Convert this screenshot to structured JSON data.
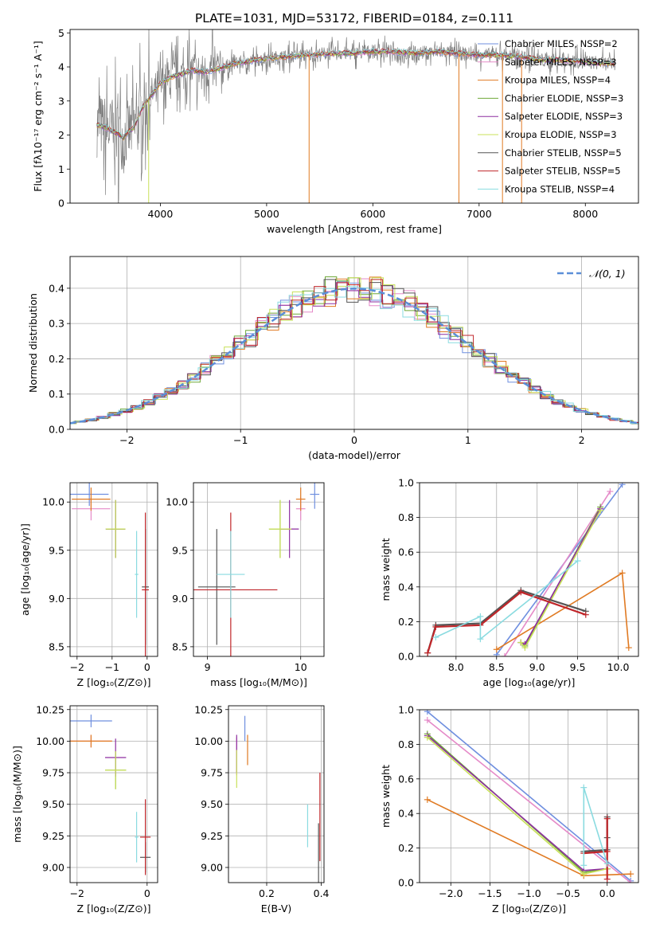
{
  "colors": {
    "chabrier_miles": "#6f8fdf",
    "salpeter_miles": "#e58ac8",
    "kroupa_miles": "#e07a22",
    "chabrier_elodie": "#6fa83a",
    "salpeter_elodie": "#8e2fa0",
    "kroupa_elodie": "#c8e05a",
    "chabrier_stelib": "#555555",
    "salpeter_stelib": "#c0262a",
    "kroupa_stelib": "#8adbe0",
    "normal_curve": "#5b8fd8",
    "observed_spectrum": "#808080"
  },
  "chart_data": [
    {
      "id": "spectrum",
      "type": "line",
      "title": "PLATE=1031, MJD=53172, FIBERID=0184, z=0.111",
      "xlabel": "wavelength [Angstrom, rest frame]",
      "ylabel": "Flux [fλ10⁻¹⁷ erg cm⁻² s⁻¹ A⁻¹]",
      "xlim": [
        3150,
        8500
      ],
      "ylim": [
        0,
        5.1
      ],
      "xticks": [
        4000,
        5000,
        6000,
        7000,
        8000
      ],
      "yticks": [
        0,
        1,
        2,
        3,
        4,
        5
      ],
      "legend_position": "right",
      "legend": [
        "Chabrier MILES, NSSP=2",
        "Salpeter MILES, NSSP=3",
        "Kroupa MILES, NSSP=4",
        "Chabrier ELODIE, NSSP=3",
        "Salpeter ELODIE, NSSP=3",
        "Kroupa ELODIE, NSSP=3",
        "Chabrier STELIB, NSSP=5",
        "Salpeter STELIB, NSSP=5",
        "Kroupa STELIB, NSSP=4"
      ],
      "series": [
        {
          "x": [
            3400,
            3500,
            3550,
            3600,
            3650,
            3700,
            3750,
            3800,
            3850,
            3900,
            3950,
            4000,
            4100,
            4200,
            4300,
            4400,
            4500,
            4600,
            4700,
            4800,
            4900,
            5000,
            5200,
            5400,
            5600,
            5800,
            6000,
            6200,
            6400,
            6600,
            6800,
            7000,
            7200,
            7400,
            7600,
            7800,
            8000,
            8200,
            8280
          ],
          "y": [
            2.3,
            2.2,
            2.1,
            2.05,
            1.9,
            2.1,
            2.2,
            2.6,
            2.9,
            3.1,
            3.3,
            3.5,
            3.7,
            3.8,
            3.9,
            3.85,
            3.9,
            4.0,
            4.1,
            4.15,
            4.2,
            4.25,
            4.3,
            4.35,
            4.4,
            4.4,
            4.45,
            4.45,
            4.4,
            4.45,
            4.4,
            4.35,
            4.35,
            4.3,
            4.2,
            4.2,
            4.15,
            4.1,
            4.1
          ]
        }
      ],
      "extra_line_wavelengths": [
        3890,
        5400,
        6810,
        7220,
        7400
      ]
    },
    {
      "id": "residuals",
      "type": "line",
      "xlabel": "(data-model)/error",
      "ylabel": "Normed distribution",
      "xlim": [
        -2.5,
        2.5
      ],
      "ylim": [
        0,
        0.49
      ],
      "xticks": [
        -2,
        -1,
        0,
        1,
        2
      ],
      "yticks": [
        0.0,
        0.1,
        0.2,
        0.3,
        0.4
      ],
      "legend": [
        "𝒩(0, 1)"
      ],
      "legend_position": "upper right",
      "grid": true,
      "normal": {
        "mean": 0,
        "sigma": 1
      }
    },
    {
      "id": "age_vs_Z",
      "type": "scatter",
      "xlabel": "Z [log₁₀(Z/Z⊙)]",
      "ylabel": "age  [log₁₀(age/yr)]",
      "xlim": [
        -2.2,
        0.3
      ],
      "ylim": [
        8.4,
        10.2
      ],
      "xticks": [
        -2,
        -1,
        0
      ],
      "yticks": [
        8.5,
        9.0,
        9.5,
        10.0
      ],
      "grid": true,
      "points": [
        {
          "x": -1.65,
          "y": 10.08,
          "xerr": 0.55,
          "yerr": 0.12,
          "c": "chabrier_miles"
        },
        {
          "x": -1.6,
          "y": 9.93,
          "xerr": 0.55,
          "yerr": 0.12,
          "c": "salpeter_miles"
        },
        {
          "x": -1.6,
          "y": 10.03,
          "xerr": 0.55,
          "yerr": 0.12,
          "c": "kroupa_miles"
        },
        {
          "x": -0.9,
          "y": 9.72,
          "xerr": 0.28,
          "yerr": 0.3,
          "c": "chabrier_elodie"
        },
        {
          "x": -0.9,
          "y": 9.72,
          "xerr": 0.28,
          "yerr": 0.3,
          "c": "salpeter_elodie"
        },
        {
          "x": -0.9,
          "y": 9.72,
          "xerr": 0.28,
          "yerr": 0.3,
          "c": "kroupa_elodie"
        },
        {
          "x": -0.05,
          "y": 9.12,
          "xerr": 0.1,
          "yerr": 0.6,
          "c": "chabrier_stelib"
        },
        {
          "x": -0.05,
          "y": 9.09,
          "xerr": 0.1,
          "yerr": 0.8,
          "c": "salpeter_stelib"
        },
        {
          "x": -0.3,
          "y": 9.25,
          "xerr": 0.05,
          "yerr": 0.45,
          "c": "kroupa_stelib"
        }
      ]
    },
    {
      "id": "age_vs_mass",
      "type": "scatter",
      "xlabel": "mass [log₁₀(M/M⊙)]",
      "xlim": [
        8.85,
        10.25
      ],
      "ylim": [
        8.4,
        10.2
      ],
      "xticks": [
        9,
        10
      ],
      "yticks": [
        8.5,
        9.0,
        9.5,
        10.0
      ],
      "grid": true,
      "points": [
        {
          "x": 10.15,
          "y": 10.08,
          "xerr": 0.05,
          "yerr": 0.15,
          "c": "chabrier_miles"
        },
        {
          "x": 10.0,
          "y": 9.93,
          "xerr": 0.05,
          "yerr": 0.12,
          "c": "salpeter_miles"
        },
        {
          "x": 10.0,
          "y": 10.03,
          "xerr": 0.05,
          "yerr": 0.12,
          "c": "kroupa_miles"
        },
        {
          "x": 9.78,
          "y": 9.72,
          "xerr": 0.12,
          "yerr": 0.3,
          "c": "chabrier_elodie"
        },
        {
          "x": 9.88,
          "y": 9.72,
          "xerr": 0.1,
          "yerr": 0.3,
          "c": "salpeter_elodie"
        },
        {
          "x": 9.78,
          "y": 9.72,
          "xerr": 0.12,
          "yerr": 0.3,
          "c": "kroupa_elodie"
        },
        {
          "x": 9.1,
          "y": 9.12,
          "xerr": 0.2,
          "yerr": 0.6,
          "c": "chabrier_stelib"
        },
        {
          "x": 9.25,
          "y": 9.09,
          "xerr": 0.5,
          "yerr": 0.8,
          "c": "salpeter_stelib"
        },
        {
          "x": 9.25,
          "y": 9.25,
          "xerr": 0.15,
          "yerr": 0.45,
          "c": "kroupa_stelib"
        }
      ]
    },
    {
      "id": "mass_weight_vs_age",
      "type": "line",
      "xlabel": "age  [log₁₀(age/yr)]",
      "ylabel": "mass weight",
      "xlim": [
        7.55,
        10.25
      ],
      "ylim": [
        0,
        1.0
      ],
      "xticks": [
        8.0,
        8.5,
        9.0,
        9.5,
        10.0
      ],
      "yticks": [
        0.0,
        0.2,
        0.4,
        0.6,
        0.8,
        1.0
      ],
      "grid": true,
      "series": [
        {
          "c": "chabrier_miles",
          "x": [
            8.5,
            10.05
          ],
          "y": [
            0.01,
            0.99
          ]
        },
        {
          "c": "salpeter_miles",
          "x": [
            8.6,
            9.9
          ],
          "y": [
            0.0,
            0.95
          ]
        },
        {
          "c": "kroupa_miles",
          "x": [
            10.13,
            10.05,
            8.5
          ],
          "y": [
            0.05,
            0.48,
            0.04
          ]
        },
        {
          "c": "chabrier_elodie",
          "x": [
            8.8,
            8.85,
            9.78
          ],
          "y": [
            0.08,
            0.06,
            0.86
          ]
        },
        {
          "c": "salpeter_elodie",
          "x": [
            8.8,
            8.85,
            9.78
          ],
          "y": [
            0.08,
            0.07,
            0.85
          ]
        },
        {
          "c": "kroupa_elodie",
          "x": [
            8.8,
            8.85,
            9.78
          ],
          "y": [
            0.08,
            0.05,
            0.84
          ]
        },
        {
          "c": "chabrier_stelib",
          "x": [
            7.65,
            7.75,
            8.3,
            8.8,
            9.6
          ],
          "y": [
            0.02,
            0.18,
            0.19,
            0.38,
            0.26
          ]
        },
        {
          "c": "salpeter_stelib",
          "x": [
            7.65,
            7.75,
            8.3,
            8.8,
            9.6
          ],
          "y": [
            0.02,
            0.17,
            0.18,
            0.37,
            0.24
          ]
        },
        {
          "c": "kroupa_stelib",
          "x": [
            7.75,
            8.3,
            8.3,
            9.5
          ],
          "y": [
            0.11,
            0.23,
            0.1,
            0.55
          ]
        }
      ]
    },
    {
      "id": "mass_vs_Z",
      "type": "scatter",
      "xlabel": "Z [log₁₀(Z/Z⊙)]",
      "ylabel": "mass [log₁₀(M/M⊙)]",
      "xlim": [
        -2.2,
        0.3
      ],
      "ylim": [
        8.88,
        10.28
      ],
      "xticks": [
        -2,
        0
      ],
      "yticks": [
        9.0,
        9.25,
        9.5,
        9.75,
        10.0,
        10.25
      ],
      "grid": true,
      "points": [
        {
          "x": -1.6,
          "y": 10.16,
          "xerr": 0.6,
          "yerr": 0.05,
          "c": "chabrier_miles"
        },
        {
          "x": -1.6,
          "y": 10.0,
          "xerr": 0.6,
          "yerr": 0.05,
          "c": "salpeter_miles"
        },
        {
          "x": -1.6,
          "y": 10.0,
          "xerr": 0.6,
          "yerr": 0.05,
          "c": "kroupa_miles"
        },
        {
          "x": -0.9,
          "y": 9.77,
          "xerr": 0.3,
          "yerr": 0.15,
          "c": "chabrier_elodie"
        },
        {
          "x": -0.9,
          "y": 9.87,
          "xerr": 0.3,
          "yerr": 0.15,
          "c": "salpeter_elodie"
        },
        {
          "x": -0.9,
          "y": 9.77,
          "xerr": 0.3,
          "yerr": 0.15,
          "c": "kroupa_elodie"
        },
        {
          "x": -0.05,
          "y": 9.08,
          "xerr": 0.15,
          "yerr": 0.12,
          "c": "chabrier_stelib"
        },
        {
          "x": -0.05,
          "y": 9.24,
          "xerr": 0.15,
          "yerr": 0.3,
          "c": "salpeter_stelib"
        },
        {
          "x": -0.3,
          "y": 9.24,
          "xerr": 0.05,
          "yerr": 0.2,
          "c": "kroupa_stelib"
        }
      ]
    },
    {
      "id": "mass_vs_ebv",
      "type": "scatter",
      "xlabel": "E(B-V)",
      "xlim": [
        0.06,
        0.41
      ],
      "ylim": [
        8.88,
        10.28
      ],
      "xticks": [
        0.2,
        0.4
      ],
      "yticks": [
        9.0,
        9.25,
        9.5,
        9.75,
        10.0,
        10.25
      ],
      "grid": true,
      "points": [
        {
          "x": 0.12,
          "y": 10.1,
          "xerr": 0.0,
          "yerr": 0.1,
          "c": "chabrier_miles"
        },
        {
          "x": 0.09,
          "y": 9.88,
          "xerr": 0.0,
          "yerr": 0.15,
          "c": "salpeter_miles"
        },
        {
          "x": 0.13,
          "y": 9.93,
          "xerr": 0.0,
          "yerr": 0.12,
          "c": "kroupa_miles"
        },
        {
          "x": 0.09,
          "y": 9.9,
          "xerr": 0.0,
          "yerr": 0.15,
          "c": "salpeter_elodie"
        },
        {
          "x": 0.09,
          "y": 9.78,
          "xerr": 0.0,
          "yerr": 0.15,
          "c": "kroupa_elodie"
        },
        {
          "x": 0.39,
          "y": 9.1,
          "xerr": 0.0,
          "yerr": 0.25,
          "c": "chabrier_stelib"
        },
        {
          "x": 0.395,
          "y": 9.4,
          "xerr": 0.0,
          "yerr": 0.35,
          "c": "salpeter_stelib"
        },
        {
          "x": 0.35,
          "y": 9.33,
          "xerr": 0.0,
          "yerr": 0.17,
          "c": "kroupa_stelib"
        }
      ]
    },
    {
      "id": "mass_weight_vs_Z",
      "type": "line",
      "xlabel": "Z [log₁₀(Z/Z⊙)]",
      "ylabel": "mass weight",
      "xlim": [
        -2.4,
        0.4
      ],
      "ylim": [
        0,
        1.0
      ],
      "xticks": [
        -2.0,
        -1.5,
        -1.0,
        -0.5,
        0.0
      ],
      "yticks": [
        0.0,
        0.2,
        0.4,
        0.6,
        0.8,
        1.0
      ],
      "grid": true,
      "series": [
        {
          "c": "chabrier_miles",
          "x": [
            -2.3,
            0.3
          ],
          "y": [
            0.99,
            0.01
          ]
        },
        {
          "c": "salpeter_miles",
          "x": [
            -2.3,
            0.3
          ],
          "y": [
            0.94,
            0.0
          ]
        },
        {
          "c": "kroupa_miles",
          "x": [
            -2.3,
            -0.3,
            0.3
          ],
          "y": [
            0.48,
            0.04,
            0.05
          ]
        },
        {
          "c": "chabrier_elodie",
          "x": [
            -2.3,
            -0.3,
            0.0
          ],
          "y": [
            0.86,
            0.06,
            0.08
          ]
        },
        {
          "c": "salpeter_elodie",
          "x": [
            -2.3,
            -0.3,
            0.0
          ],
          "y": [
            0.85,
            0.07,
            0.08
          ]
        },
        {
          "c": "kroupa_elodie",
          "x": [
            -2.3,
            -0.3,
            0.0
          ],
          "y": [
            0.84,
            0.05,
            0.08
          ]
        },
        {
          "c": "chabrier_stelib",
          "x": [
            -0.3,
            0.0,
            0.0,
            0.0
          ],
          "y": [
            0.18,
            0.19,
            0.26,
            0.38
          ]
        },
        {
          "c": "salpeter_stelib",
          "x": [
            -0.3,
            0.0,
            0.0,
            0.0
          ],
          "y": [
            0.17,
            0.18,
            0.02,
            0.37
          ]
        },
        {
          "c": "kroupa_stelib",
          "x": [
            -0.3,
            -0.3,
            0.0
          ],
          "y": [
            0.1,
            0.55,
            0.11
          ]
        }
      ]
    }
  ]
}
